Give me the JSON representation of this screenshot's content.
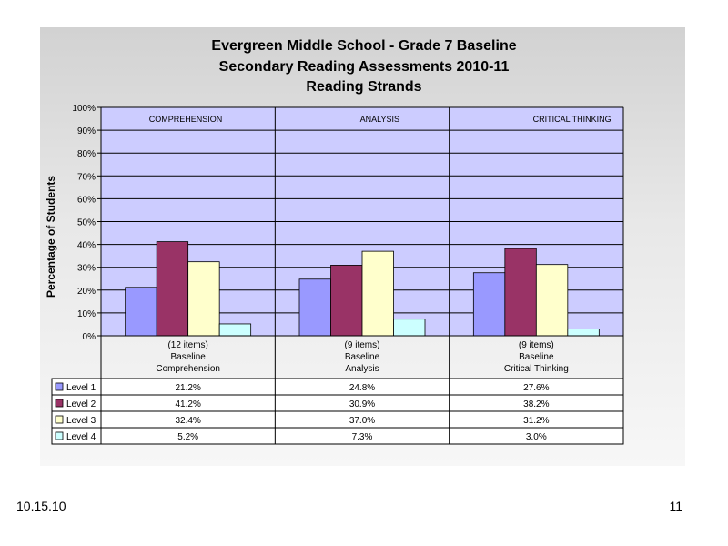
{
  "chart_data": {
    "type": "bar",
    "title": [
      "Evergreen Middle School - Grade 7 Baseline",
      "Secondary Reading Assessments 2010-11",
      "Reading Strands"
    ],
    "ylabel": "Percentage of Students",
    "ylim": [
      0,
      100
    ],
    "yticks": [
      "0%",
      "10%",
      "20%",
      "30%",
      "40%",
      "50%",
      "60%",
      "70%",
      "80%",
      "90%",
      "100%"
    ],
    "grid": true,
    "legend": "data table below chart",
    "strand_labels": [
      "COMPREHENSION",
      "ANALYSIS",
      "CRITICAL THINKING"
    ],
    "categories": [
      [
        "(12 items)",
        "Baseline",
        "Comprehension"
      ],
      [
        "(9 items)",
        "Baseline",
        "Analysis"
      ],
      [
        "(9 items)",
        "Baseline",
        "Critical Thinking"
      ]
    ],
    "series": [
      {
        "name": "Level 1",
        "color": "#9999ff",
        "values": [
          21.2,
          24.8,
          27.6
        ],
        "labels": [
          "21.2%",
          "24.8%",
          "27.6%"
        ]
      },
      {
        "name": "Level 2",
        "color": "#993366",
        "values": [
          41.2,
          30.9,
          38.2
        ],
        "labels": [
          "41.2%",
          "30.9%",
          "38.2%"
        ]
      },
      {
        "name": "Level 3",
        "color": "#ffffcc",
        "values": [
          32.4,
          37.0,
          31.2
        ],
        "labels": [
          "32.4%",
          "37.0%",
          "31.2%"
        ]
      },
      {
        "name": "Level 4",
        "color": "#ccffff",
        "values": [
          5.2,
          7.3,
          3.0
        ],
        "labels": [
          "5.2%",
          "7.3%",
          "3.0%"
        ]
      }
    ],
    "plot_background": "#ccccff"
  },
  "footer": {
    "date": "10.15.10",
    "page_number": "11"
  }
}
